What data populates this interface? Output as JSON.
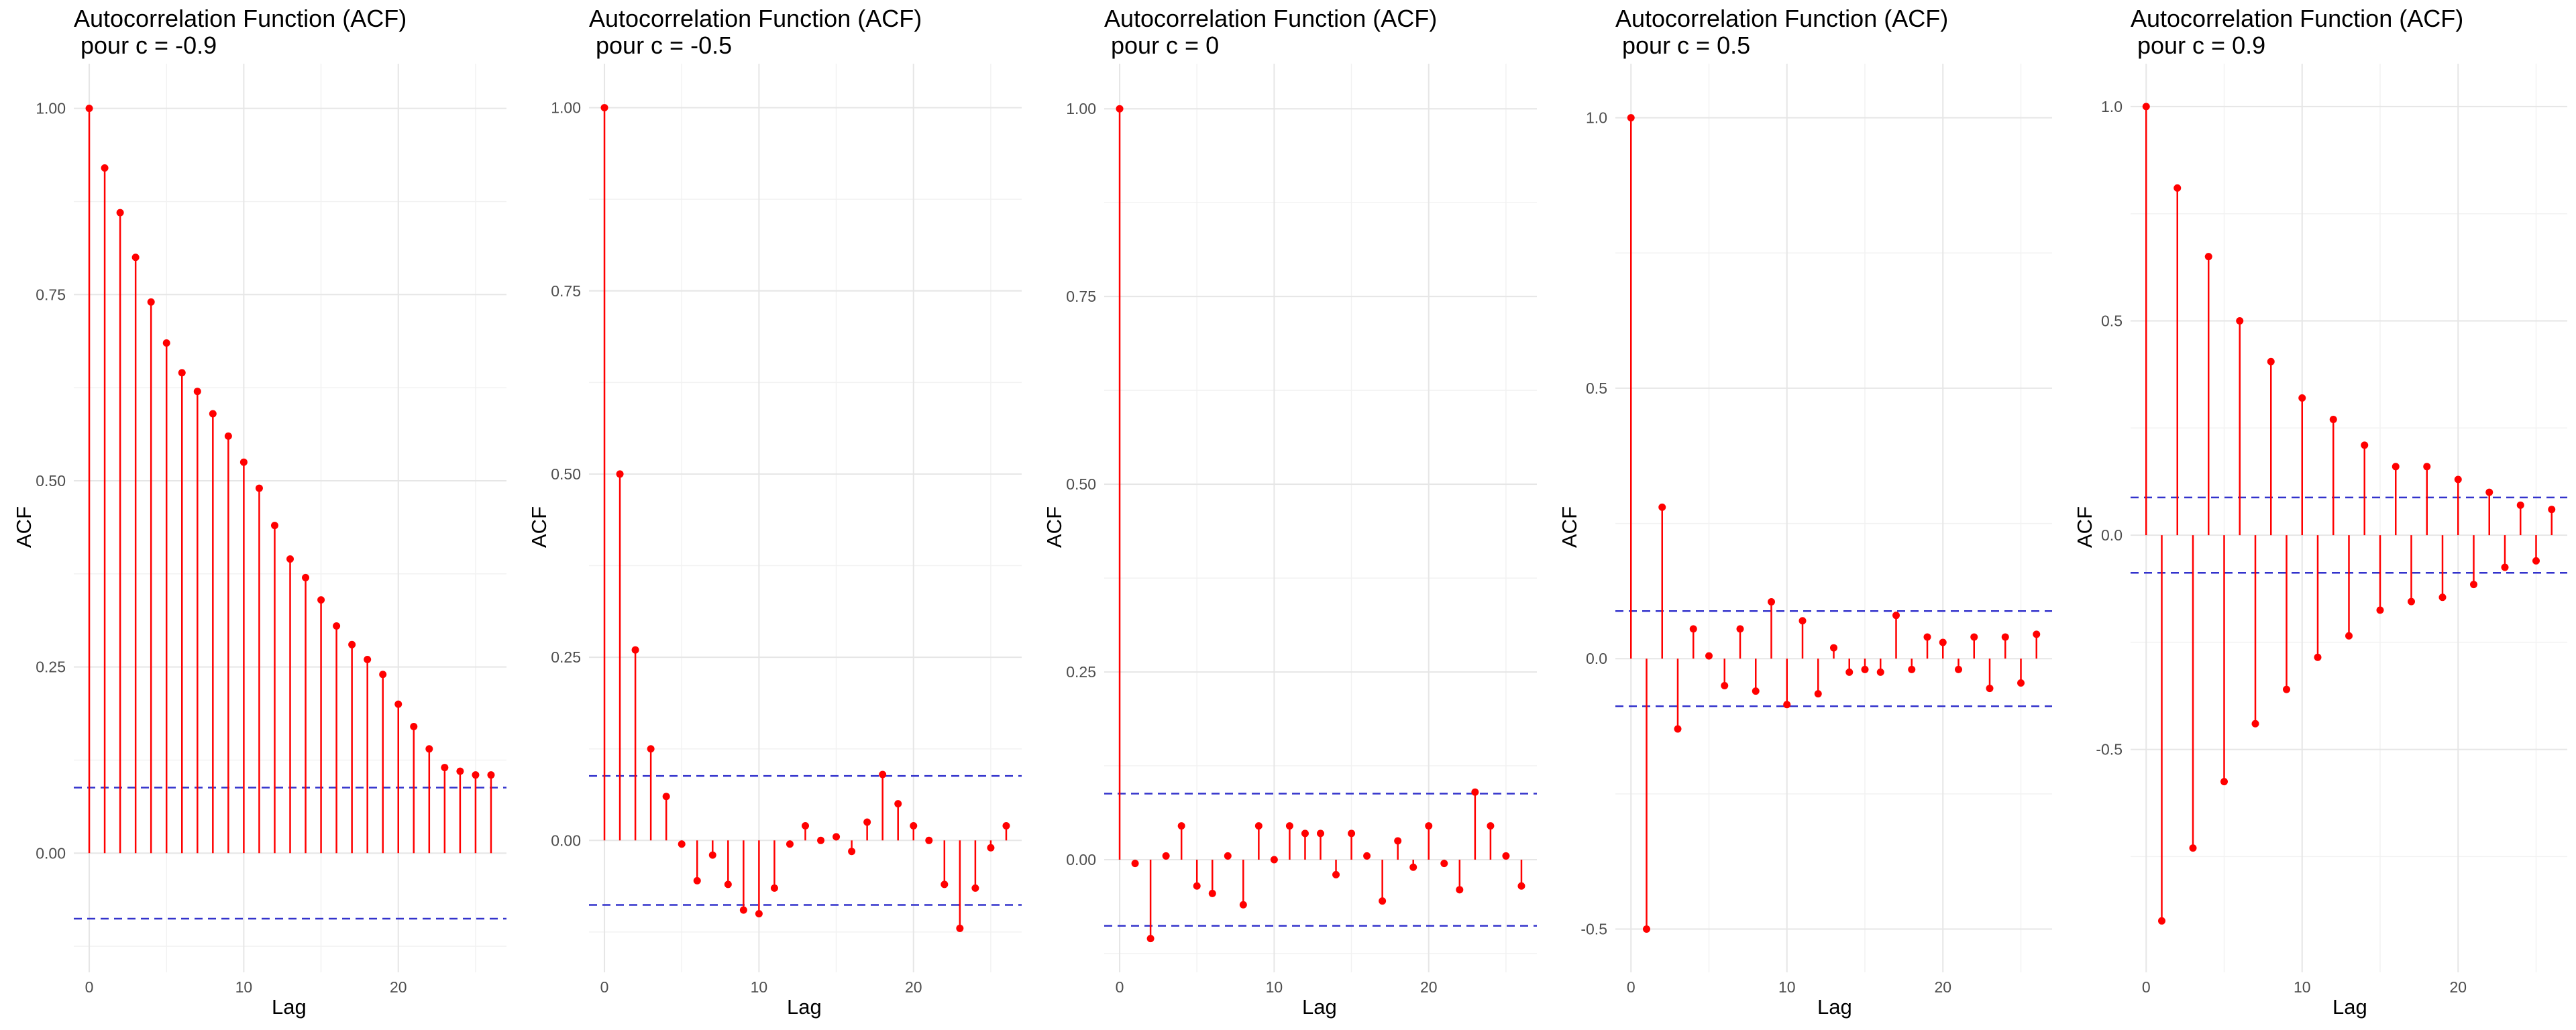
{
  "chart_data": [
    {
      "type": "line",
      "title": "Autocorrelation Function (ACF)\n pour c = -0.9",
      "xlabel": "Lag",
      "ylabel": "ACF",
      "xlim": [
        -1,
        27
      ],
      "ylim": [
        -0.16,
        1.06
      ],
      "xticks": [
        0,
        10,
        20
      ],
      "yticks": [
        0,
        0.25,
        0.5,
        0.75,
        1
      ],
      "ytick_labels": [
        "0.00",
        "0.25",
        "0.50",
        "0.75",
        "1.00"
      ],
      "conf_bound": 0.088,
      "grid": true,
      "series": [
        {
          "x": [
            0,
            1,
            2,
            3,
            4,
            5,
            6,
            7,
            8,
            9,
            10,
            11,
            12,
            13,
            14,
            15,
            16,
            17,
            18,
            19,
            20,
            21,
            22,
            23,
            24,
            25,
            26
          ],
          "values": [
            1.0,
            0.92,
            0.86,
            0.8,
            0.74,
            0.685,
            0.645,
            0.62,
            0.59,
            0.56,
            0.525,
            0.49,
            0.44,
            0.395,
            0.37,
            0.34,
            0.305,
            0.28,
            0.26,
            0.24,
            0.2,
            0.17,
            0.14,
            0.115,
            0.11,
            0.105,
            0.105
          ]
        }
      ]
    },
    {
      "type": "line",
      "title": "Autocorrelation Function (ACF)\n pour c = -0.5",
      "xlabel": "Lag",
      "ylabel": "ACF",
      "xlim": [
        -1,
        27
      ],
      "ylim": [
        -0.18,
        1.06
      ],
      "xticks": [
        0,
        10,
        20
      ],
      "yticks": [
        0,
        0.25,
        0.5,
        0.75,
        1
      ],
      "ytick_labels": [
        "0.00",
        "0.25",
        "0.50",
        "0.75",
        "1.00"
      ],
      "conf_bound": 0.088,
      "grid": true,
      "series": [
        {
          "x": [
            0,
            1,
            2,
            3,
            4,
            5,
            6,
            7,
            8,
            9,
            10,
            11,
            12,
            13,
            14,
            15,
            16,
            17,
            18,
            19,
            20,
            21,
            22,
            23,
            24,
            25,
            26
          ],
          "values": [
            1.0,
            0.5,
            0.26,
            0.125,
            0.06,
            -0.005,
            -0.055,
            -0.02,
            -0.06,
            -0.095,
            -0.1,
            -0.065,
            -0.005,
            0.02,
            0.0,
            0.005,
            -0.015,
            0.025,
            0.09,
            0.05,
            0.02,
            0.0,
            -0.06,
            -0.12,
            -0.065,
            -0.01,
            0.02
          ]
        }
      ]
    },
    {
      "type": "line",
      "title": "Autocorrelation Function (ACF)\n pour c = 0",
      "xlabel": "Lag",
      "ylabel": "ACF",
      "xlim": [
        -1,
        27
      ],
      "ylim": [
        -0.15,
        1.06
      ],
      "xticks": [
        0,
        10,
        20
      ],
      "yticks": [
        0,
        0.25,
        0.5,
        0.75,
        1
      ],
      "ytick_labels": [
        "0.00",
        "0.25",
        "0.50",
        "0.75",
        "1.00"
      ],
      "conf_bound": 0.088,
      "grid": true,
      "series": [
        {
          "x": [
            0,
            1,
            2,
            3,
            4,
            5,
            6,
            7,
            8,
            9,
            10,
            11,
            12,
            13,
            14,
            15,
            16,
            17,
            18,
            19,
            20,
            21,
            22,
            23,
            24,
            25,
            26
          ],
          "values": [
            1.0,
            -0.005,
            -0.105,
            0.005,
            0.045,
            -0.035,
            -0.045,
            0.005,
            -0.06,
            0.045,
            0.0,
            0.045,
            0.035,
            0.035,
            -0.02,
            0.035,
            0.005,
            -0.055,
            0.025,
            -0.01,
            0.045,
            -0.005,
            -0.04,
            0.09,
            0.045,
            0.005,
            -0.035
          ]
        }
      ]
    },
    {
      "type": "line",
      "title": "Autocorrelation Function (ACF)\n pour c = 0.5",
      "xlabel": "Lag",
      "ylabel": "ACF",
      "xlim": [
        -1,
        27
      ],
      "ylim": [
        -0.58,
        1.1
      ],
      "xticks": [
        0,
        10,
        20
      ],
      "yticks": [
        -0.5,
        0,
        0.5,
        1
      ],
      "ytick_labels": [
        "-0.5",
        "0.0",
        "0.5",
        "1.0"
      ],
      "conf_bound": 0.088,
      "grid": true,
      "series": [
        {
          "x": [
            0,
            1,
            2,
            3,
            4,
            5,
            6,
            7,
            8,
            9,
            10,
            11,
            12,
            13,
            14,
            15,
            16,
            17,
            18,
            19,
            20,
            21,
            22,
            23,
            24,
            25,
            26
          ],
          "values": [
            1.0,
            -0.5,
            0.28,
            -0.13,
            0.055,
            0.005,
            -0.05,
            0.055,
            -0.06,
            0.105,
            -0.085,
            0.07,
            -0.065,
            0.02,
            -0.025,
            -0.02,
            -0.025,
            0.08,
            -0.02,
            0.04,
            0.03,
            -0.02,
            0.04,
            -0.055,
            0.04,
            -0.045,
            0.045
          ]
        }
      ]
    },
    {
      "type": "line",
      "title": "Autocorrelation Function (ACF)\n pour c = 0.9",
      "xlabel": "Lag",
      "ylabel": "ACF",
      "xlim": [
        -1,
        27
      ],
      "ylim": [
        -1.02,
        1.1
      ],
      "xticks": [
        0,
        10,
        20
      ],
      "yticks": [
        -0.5,
        0,
        0.5,
        1
      ],
      "ytick_labels": [
        "-0.5",
        "0.0",
        "0.5",
        "1.0"
      ],
      "conf_bound": 0.088,
      "grid": true,
      "series": [
        {
          "x": [
            0,
            1,
            2,
            3,
            4,
            5,
            6,
            7,
            8,
            9,
            10,
            11,
            12,
            13,
            14,
            15,
            16,
            17,
            18,
            19,
            20,
            21,
            22,
            23,
            24,
            25,
            26
          ],
          "values": [
            1.0,
            -0.9,
            0.81,
            -0.73,
            0.65,
            -0.575,
            0.5,
            -0.44,
            0.405,
            -0.36,
            0.32,
            -0.285,
            0.27,
            -0.235,
            0.21,
            -0.175,
            0.16,
            -0.155,
            0.16,
            -0.145,
            0.13,
            -0.115,
            0.1,
            -0.075,
            0.07,
            -0.06,
            0.06
          ]
        }
      ]
    }
  ]
}
